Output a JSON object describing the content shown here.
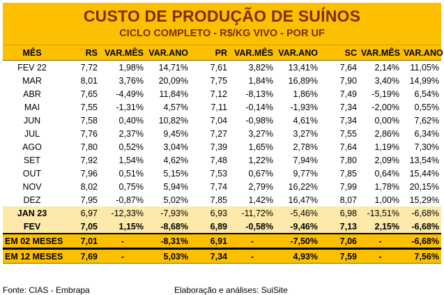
{
  "title": "CUSTO DE PRODUÇÃO DE SUÍNOS",
  "subtitle": "CICLO COMPLETO - R$/KG VIVO - POR UF",
  "columns": [
    "MÊS",
    "RS",
    "VAR.MÊS",
    "VAR.ANO",
    "PR",
    "VAR.MÊS",
    "VAR.ANO",
    "SC",
    "VAR.MÊS",
    "VAR.ANO"
  ],
  "rows": [
    [
      "FEV 22",
      "7,72",
      "1,98%",
      "14,71%",
      "7,61",
      "3,82%",
      "13,41%",
      "7,64",
      "2,14%",
      "11,05%"
    ],
    [
      "MAR",
      "8,01",
      "3,76%",
      "20,09%",
      "7,75",
      "1,84%",
      "16,89%",
      "7,90",
      "3,40%",
      "14,99%"
    ],
    [
      "ABR",
      "7,65",
      "-4,49%",
      "11,84%",
      "7,12",
      "-8,13%",
      "1,86%",
      "7,49",
      "-5,19%",
      "6,54%"
    ],
    [
      "MAI",
      "7,55",
      "-1,31%",
      "4,57%",
      "7,11",
      "-0,14%",
      "-1,93%",
      "7,34",
      "-2,00%",
      "0,55%"
    ],
    [
      "JUN",
      "7,58",
      "0,40%",
      "10,82%",
      "7,04",
      "-0,98%",
      "4,61%",
      "7,34",
      "0,00%",
      "7,62%"
    ],
    [
      "JUL",
      "7,76",
      "2,37%",
      "9,45%",
      "7,27",
      "3,27%",
      "3,27%",
      "7,55",
      "2,86%",
      "6,34%"
    ],
    [
      "AGO",
      "7,80",
      "0,52%",
      "3,04%",
      "7,39",
      "1,65%",
      "2,78%",
      "7,64",
      "1,19%",
      "7,30%"
    ],
    [
      "SET",
      "7,92",
      "1,54%",
      "4,62%",
      "7,48",
      "1,22%",
      "7,94%",
      "7,80",
      "2,09%",
      "13,54%"
    ],
    [
      "OUT",
      "7,96",
      "0,51%",
      "5,15%",
      "7,53",
      "0,67%",
      "9,77%",
      "7,85",
      "0,64%",
      "15,44%"
    ],
    [
      "NOV",
      "8,02",
      "0,75%",
      "5,94%",
      "7,74",
      "2,79%",
      "16,22%",
      "7,99",
      "1,78%",
      "20,15%"
    ],
    [
      "DEZ",
      "7,95",
      "-0,87%",
      "5,02%",
      "7,85",
      "1,42%",
      "16,47%",
      "8,07",
      "1,00%",
      "15,29%"
    ]
  ],
  "jan23": [
    "JAN 23",
    "6,97",
    "-12,33%",
    "-7,93%",
    "6,93",
    "-11,72%",
    "-5,46%",
    "6,98",
    "-13,51%",
    "-6,68%"
  ],
  "fev23": [
    "FEV",
    "7,05",
    "1,15%",
    "-8,68%",
    "6,89",
    "-0,58%",
    "-9,46%",
    "7,13",
    "2,15%",
    "-6,68%"
  ],
  "sum2": [
    "EM 02 MESES",
    "7,01",
    "-",
    "-8,31%",
    "6,91",
    "-",
    "-7,50%",
    "7,06",
    "-",
    "-6,68%"
  ],
  "sum12": [
    "EM 12 MESES",
    "7,69",
    "-",
    "5,03%",
    "7,34",
    "-",
    "4,93%",
    "7,59",
    "-",
    "7,56%"
  ],
  "footer": {
    "source": "Fonte: CIAS - Embrapa",
    "elaboration": "Elaboração e análises: SuiSite"
  },
  "colors": {
    "header_bg": "#fdc000",
    "highlight_bg": "#fde9a9",
    "title_color": "#7a2f00"
  }
}
